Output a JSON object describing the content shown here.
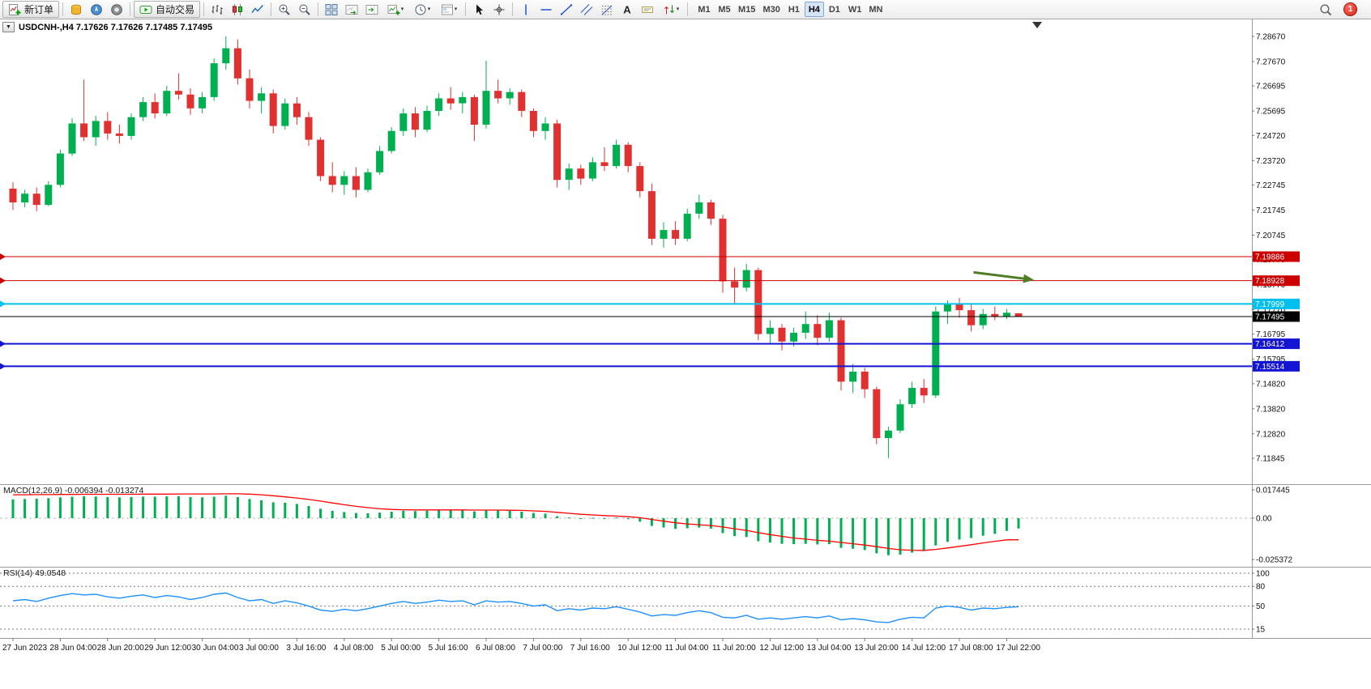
{
  "icons": {
    "caret_down": "▾",
    "dropdown_arrow": "▼"
  },
  "toolbar": {
    "new_order_label": "新订单",
    "auto_trading_label": "自动交易",
    "timeframes": [
      "M1",
      "M5",
      "M15",
      "M30",
      "H1",
      "H4",
      "D1",
      "W1",
      "MN"
    ],
    "active_timeframe": "H4",
    "notification_count": "1"
  },
  "chart": {
    "title": "USDCNH-,H4 7.17626 7.17626 7.17485 7.17495",
    "macd_label": "MACD(12,26,9) -0.006394 -0.013274",
    "rsi_label": "RSI(14) 49.0548"
  },
  "chart_data": {
    "type": "candlestick",
    "symbol": "USDCNH-",
    "timeframe": "H4",
    "colors": {
      "up": "#00b050",
      "down": "#e03030",
      "macd_hist": "#00b050",
      "macd_signal": "#ff0000",
      "rsi_line": "#1e90ff",
      "axis_text": "#111111",
      "grid": "#9a9a9a"
    },
    "price_ticks": [
      "7.28670",
      "7.27670",
      "7.26695",
      "7.25695",
      "7.24720",
      "7.23720",
      "7.22745",
      "7.21745",
      "7.20745",
      "7.19770",
      "7.18770",
      "7.17770",
      "7.16795",
      "7.15795",
      "7.14820",
      "7.13820",
      "7.12820",
      "7.11845"
    ],
    "time_labels": [
      "27 Jun 2023",
      "28 Jun 04:00",
      "28 Jun 20:00",
      "29 Jun 12:00",
      "30 Jun 04:00",
      "3 Jul 00:00",
      "3 Jul 16:00",
      "4 Jul 08:00",
      "5 Jul 00:00",
      "5 Jul 16:00",
      "6 Jul 08:00",
      "7 Jul 00:00",
      "7 Jul 16:00",
      "10 Jul 12:00",
      "11 Jul 04:00",
      "11 Jul 20:00",
      "12 Jul 12:00",
      "13 Jul 04:00",
      "13 Jul 20:00",
      "14 Jul 12:00",
      "17 Jul 08:00",
      "17 Jul 22:00"
    ],
    "label_every": 4,
    "candles": [
      [
        7.226,
        7.2285,
        7.2175,
        7.2205
      ],
      [
        7.2205,
        7.2255,
        7.2185,
        7.224
      ],
      [
        7.224,
        7.2265,
        7.217,
        7.2195
      ],
      [
        7.2195,
        7.229,
        7.219,
        7.2275
      ],
      [
        7.2275,
        7.2415,
        7.2265,
        7.24
      ],
      [
        7.24,
        7.254,
        7.239,
        7.252
      ],
      [
        7.252,
        7.2695,
        7.245,
        7.2465
      ],
      [
        7.2465,
        7.255,
        7.243,
        7.253
      ],
      [
        7.253,
        7.2565,
        7.2455,
        7.248
      ],
      [
        7.248,
        7.2515,
        7.244,
        7.247
      ],
      [
        7.247,
        7.256,
        7.2455,
        7.2545
      ],
      [
        7.2545,
        7.2625,
        7.253,
        7.2605
      ],
      [
        7.2605,
        7.264,
        7.254,
        7.256
      ],
      [
        7.256,
        7.267,
        7.255,
        7.265
      ],
      [
        7.265,
        7.272,
        7.2615,
        7.2635
      ],
      [
        7.2635,
        7.266,
        7.2555,
        7.258
      ],
      [
        7.258,
        7.2645,
        7.256,
        7.2625
      ],
      [
        7.2625,
        7.278,
        7.261,
        7.276
      ],
      [
        7.276,
        7.2867,
        7.2735,
        7.282
      ],
      [
        7.282,
        7.2855,
        7.2675,
        7.27
      ],
      [
        7.27,
        7.2735,
        7.258,
        7.261
      ],
      [
        7.261,
        7.2665,
        7.256,
        7.264
      ],
      [
        7.264,
        7.2655,
        7.248,
        7.251
      ],
      [
        7.251,
        7.262,
        7.2495,
        7.26
      ],
      [
        7.26,
        7.2625,
        7.2515,
        7.2545
      ],
      [
        7.2545,
        7.2565,
        7.243,
        7.2455
      ],
      [
        7.2455,
        7.2465,
        7.229,
        7.231
      ],
      [
        7.231,
        7.2365,
        7.2245,
        7.2275
      ],
      [
        7.2275,
        7.233,
        7.2235,
        7.231
      ],
      [
        7.231,
        7.2345,
        7.2225,
        7.2255
      ],
      [
        7.2255,
        7.234,
        7.2245,
        7.2325
      ],
      [
        7.2325,
        7.243,
        7.2315,
        7.241
      ],
      [
        7.241,
        7.2505,
        7.24,
        7.249
      ],
      [
        7.249,
        7.258,
        7.247,
        7.256
      ],
      [
        7.256,
        7.2585,
        7.2465,
        7.2495
      ],
      [
        7.2495,
        7.259,
        7.2485,
        7.257
      ],
      [
        7.257,
        7.264,
        7.255,
        7.262
      ],
      [
        7.262,
        7.2665,
        7.2575,
        7.26
      ],
      [
        7.26,
        7.2645,
        7.256,
        7.2625
      ],
      [
        7.2625,
        7.2635,
        7.245,
        7.2515
      ],
      [
        7.2515,
        7.277,
        7.25,
        7.265
      ],
      [
        7.265,
        7.2695,
        7.26,
        7.262
      ],
      [
        7.262,
        7.266,
        7.2595,
        7.2645
      ],
      [
        7.2645,
        7.2655,
        7.2545,
        7.257
      ],
      [
        7.257,
        7.258,
        7.2465,
        7.249
      ],
      [
        7.249,
        7.2545,
        7.2455,
        7.252
      ],
      [
        7.252,
        7.2535,
        7.2265,
        7.2295
      ],
      [
        7.2295,
        7.236,
        7.2255,
        7.234
      ],
      [
        7.234,
        7.2355,
        7.2275,
        7.23
      ],
      [
        7.23,
        7.2385,
        7.229,
        7.2365
      ],
      [
        7.2365,
        7.2425,
        7.233,
        7.235
      ],
      [
        7.235,
        7.2455,
        7.234,
        7.2435
      ],
      [
        7.2435,
        7.2445,
        7.2325,
        7.235
      ],
      [
        7.235,
        7.2365,
        7.2225,
        7.225
      ],
      [
        7.225,
        7.228,
        7.2035,
        7.206
      ],
      [
        7.206,
        7.2125,
        7.2025,
        7.2095
      ],
      [
        7.2095,
        7.213,
        7.2035,
        7.206
      ],
      [
        7.206,
        7.218,
        7.205,
        7.216
      ],
      [
        7.216,
        7.2235,
        7.214,
        7.2205
      ],
      [
        7.2205,
        7.2215,
        7.2115,
        7.214
      ],
      [
        7.214,
        7.2155,
        7.1845,
        7.189
      ],
      [
        7.189,
        7.1945,
        7.18,
        7.1865
      ],
      [
        7.1865,
        7.196,
        7.185,
        7.1935
      ],
      [
        7.1935,
        7.1945,
        7.1655,
        7.168
      ],
      [
        7.168,
        7.1735,
        7.164,
        7.1705
      ],
      [
        7.1705,
        7.172,
        7.1615,
        7.165
      ],
      [
        7.165,
        7.1705,
        7.163,
        7.1685
      ],
      [
        7.1685,
        7.177,
        7.166,
        7.172
      ],
      [
        7.172,
        7.1755,
        7.1635,
        7.1665
      ],
      [
        7.1665,
        7.1765,
        7.165,
        7.1735
      ],
      [
        7.1735,
        7.1745,
        7.1455,
        7.149
      ],
      [
        7.149,
        7.156,
        7.1445,
        7.153
      ],
      [
        7.153,
        7.1545,
        7.1425,
        7.146
      ],
      [
        7.146,
        7.147,
        7.124,
        7.1265
      ],
      [
        7.1265,
        7.131,
        7.1185,
        7.1295
      ],
      [
        7.1295,
        7.142,
        7.1285,
        7.14
      ],
      [
        7.14,
        7.149,
        7.1385,
        7.1465
      ],
      [
        7.1465,
        7.15,
        7.1405,
        7.1435
      ],
      [
        7.1435,
        7.179,
        7.1425,
        7.177
      ],
      [
        7.177,
        7.1815,
        7.172,
        7.18
      ],
      [
        7.18,
        7.1825,
        7.1745,
        7.1775
      ],
      [
        7.1775,
        7.18,
        7.169,
        7.1715
      ],
      [
        7.1715,
        7.178,
        7.17,
        7.176
      ],
      [
        7.176,
        7.179,
        7.1735,
        7.175
      ],
      [
        7.175,
        7.178,
        7.174,
        7.1765
      ],
      [
        7.17626,
        7.17626,
        7.17485,
        7.17495
      ]
    ],
    "levels": [
      {
        "price": 7.19886,
        "label": "7.19886",
        "color": "#cc0000",
        "line_width": 1
      },
      {
        "price": 7.18928,
        "label": "7.18928",
        "color": "#cc0000",
        "line_width": 1
      },
      {
        "price": 7.17999,
        "label": "7.17999",
        "color": "#00c0ef",
        "line_width": 2
      },
      {
        "price": 7.17495,
        "label": "7.17495",
        "color": "#000000",
        "line_width": 1,
        "is_current_price": true
      },
      {
        "price": 7.16412,
        "label": "7.16412",
        "color": "#1414d4",
        "line_width": 2
      },
      {
        "price": 7.15514,
        "label": "7.15514",
        "color": "#1414d4",
        "line_width": 2
      }
    ],
    "indicators": {
      "macd": {
        "name": "MACD(12,26,9)",
        "main_value": -0.006394,
        "signal_value": -0.013274,
        "axis_ticks": [
          "0.017445",
          "0.00",
          "-0.025372"
        ],
        "scale_max": 0.017445,
        "scale_min": -0.025372,
        "histogram": [
          0.0115,
          0.0118,
          0.012,
          0.0123,
          0.0128,
          0.0132,
          0.0135,
          0.0133,
          0.013,
          0.0128,
          0.013,
          0.0133,
          0.0132,
          0.0134,
          0.0135,
          0.013,
          0.0128,
          0.0132,
          0.0138,
          0.013,
          0.0118,
          0.011,
          0.0098,
          0.0095,
          0.0088,
          0.0075,
          0.0058,
          0.0045,
          0.0038,
          0.0032,
          0.003,
          0.0034,
          0.004,
          0.0046,
          0.0044,
          0.0046,
          0.005,
          0.0049,
          0.005,
          0.0042,
          0.0048,
          0.0047,
          0.0046,
          0.004,
          0.0032,
          0.0028,
          0.0012,
          0.0004,
          -0.0002,
          0.0002,
          0.0,
          0.0004,
          -0.0006,
          -0.0022,
          -0.0048,
          -0.0058,
          -0.0066,
          -0.0062,
          -0.0058,
          -0.0064,
          -0.0092,
          -0.011,
          -0.0116,
          -0.0142,
          -0.015,
          -0.0158,
          -0.016,
          -0.0158,
          -0.0162,
          -0.016,
          -0.0182,
          -0.0188,
          -0.0196,
          -0.0216,
          -0.0228,
          -0.0224,
          -0.0212,
          -0.0202,
          -0.0168,
          -0.0146,
          -0.0132,
          -0.0122,
          -0.0108,
          -0.0096,
          -0.0078,
          -0.006394
        ],
        "signal": [
          0.0144,
          0.0144,
          0.0145,
          0.0145,
          0.0146,
          0.0146,
          0.0147,
          0.0147,
          0.0147,
          0.0147,
          0.0147,
          0.0148,
          0.0148,
          0.0148,
          0.0149,
          0.0149,
          0.0149,
          0.0149,
          0.015,
          0.015,
          0.0148,
          0.0144,
          0.0138,
          0.0131,
          0.0124,
          0.0115,
          0.0105,
          0.0094,
          0.0083,
          0.0073,
          0.0065,
          0.0058,
          0.0054,
          0.0052,
          0.0051,
          0.0051,
          0.0051,
          0.0051,
          0.0051,
          0.005,
          0.005,
          0.005,
          0.0049,
          0.0048,
          0.0045,
          0.0042,
          0.0036,
          0.003,
          0.0024,
          0.002,
          0.0016,
          0.0013,
          0.0009,
          0.0003,
          -0.0008,
          -0.0018,
          -0.0028,
          -0.0035,
          -0.004,
          -0.0045,
          -0.0054,
          -0.0065,
          -0.0075,
          -0.0089,
          -0.0101,
          -0.0112,
          -0.0122,
          -0.0129,
          -0.0136,
          -0.0141,
          -0.0149,
          -0.0157,
          -0.0165,
          -0.0175,
          -0.0186,
          -0.0194,
          -0.0197,
          -0.0198,
          -0.0192,
          -0.0183,
          -0.0173,
          -0.0163,
          -0.0152,
          -0.0142,
          -0.0133,
          -0.013274
        ]
      },
      "rsi": {
        "name": "RSI(14)",
        "value": 49.0548,
        "levels": [
          100,
          80,
          50,
          15
        ],
        "values": [
          58,
          60,
          57,
          62,
          66,
          69,
          67,
          68,
          64,
          62,
          65,
          67,
          63,
          66,
          64,
          60,
          63,
          68,
          70,
          63,
          58,
          60,
          54,
          58,
          55,
          50,
          44,
          42,
          45,
          43,
          46,
          50,
          54,
          57,
          54,
          56,
          59,
          57,
          58,
          52,
          58,
          56,
          57,
          54,
          50,
          52,
          43,
          46,
          44,
          47,
          46,
          49,
          45,
          41,
          35,
          37,
          36,
          40,
          43,
          40,
          33,
          32,
          36,
          30,
          32,
          30,
          32,
          34,
          32,
          35,
          29,
          31,
          29,
          26,
          25,
          30,
          33,
          32,
          47,
          50,
          48,
          44,
          47,
          46,
          48,
          49.0548
        ]
      }
    },
    "arrow_object": {
      "from_candle": 81.2,
      "from_price": 7.1926,
      "to_candle": 86.3,
      "to_price": 7.1896,
      "color": "#4f7d24"
    }
  }
}
